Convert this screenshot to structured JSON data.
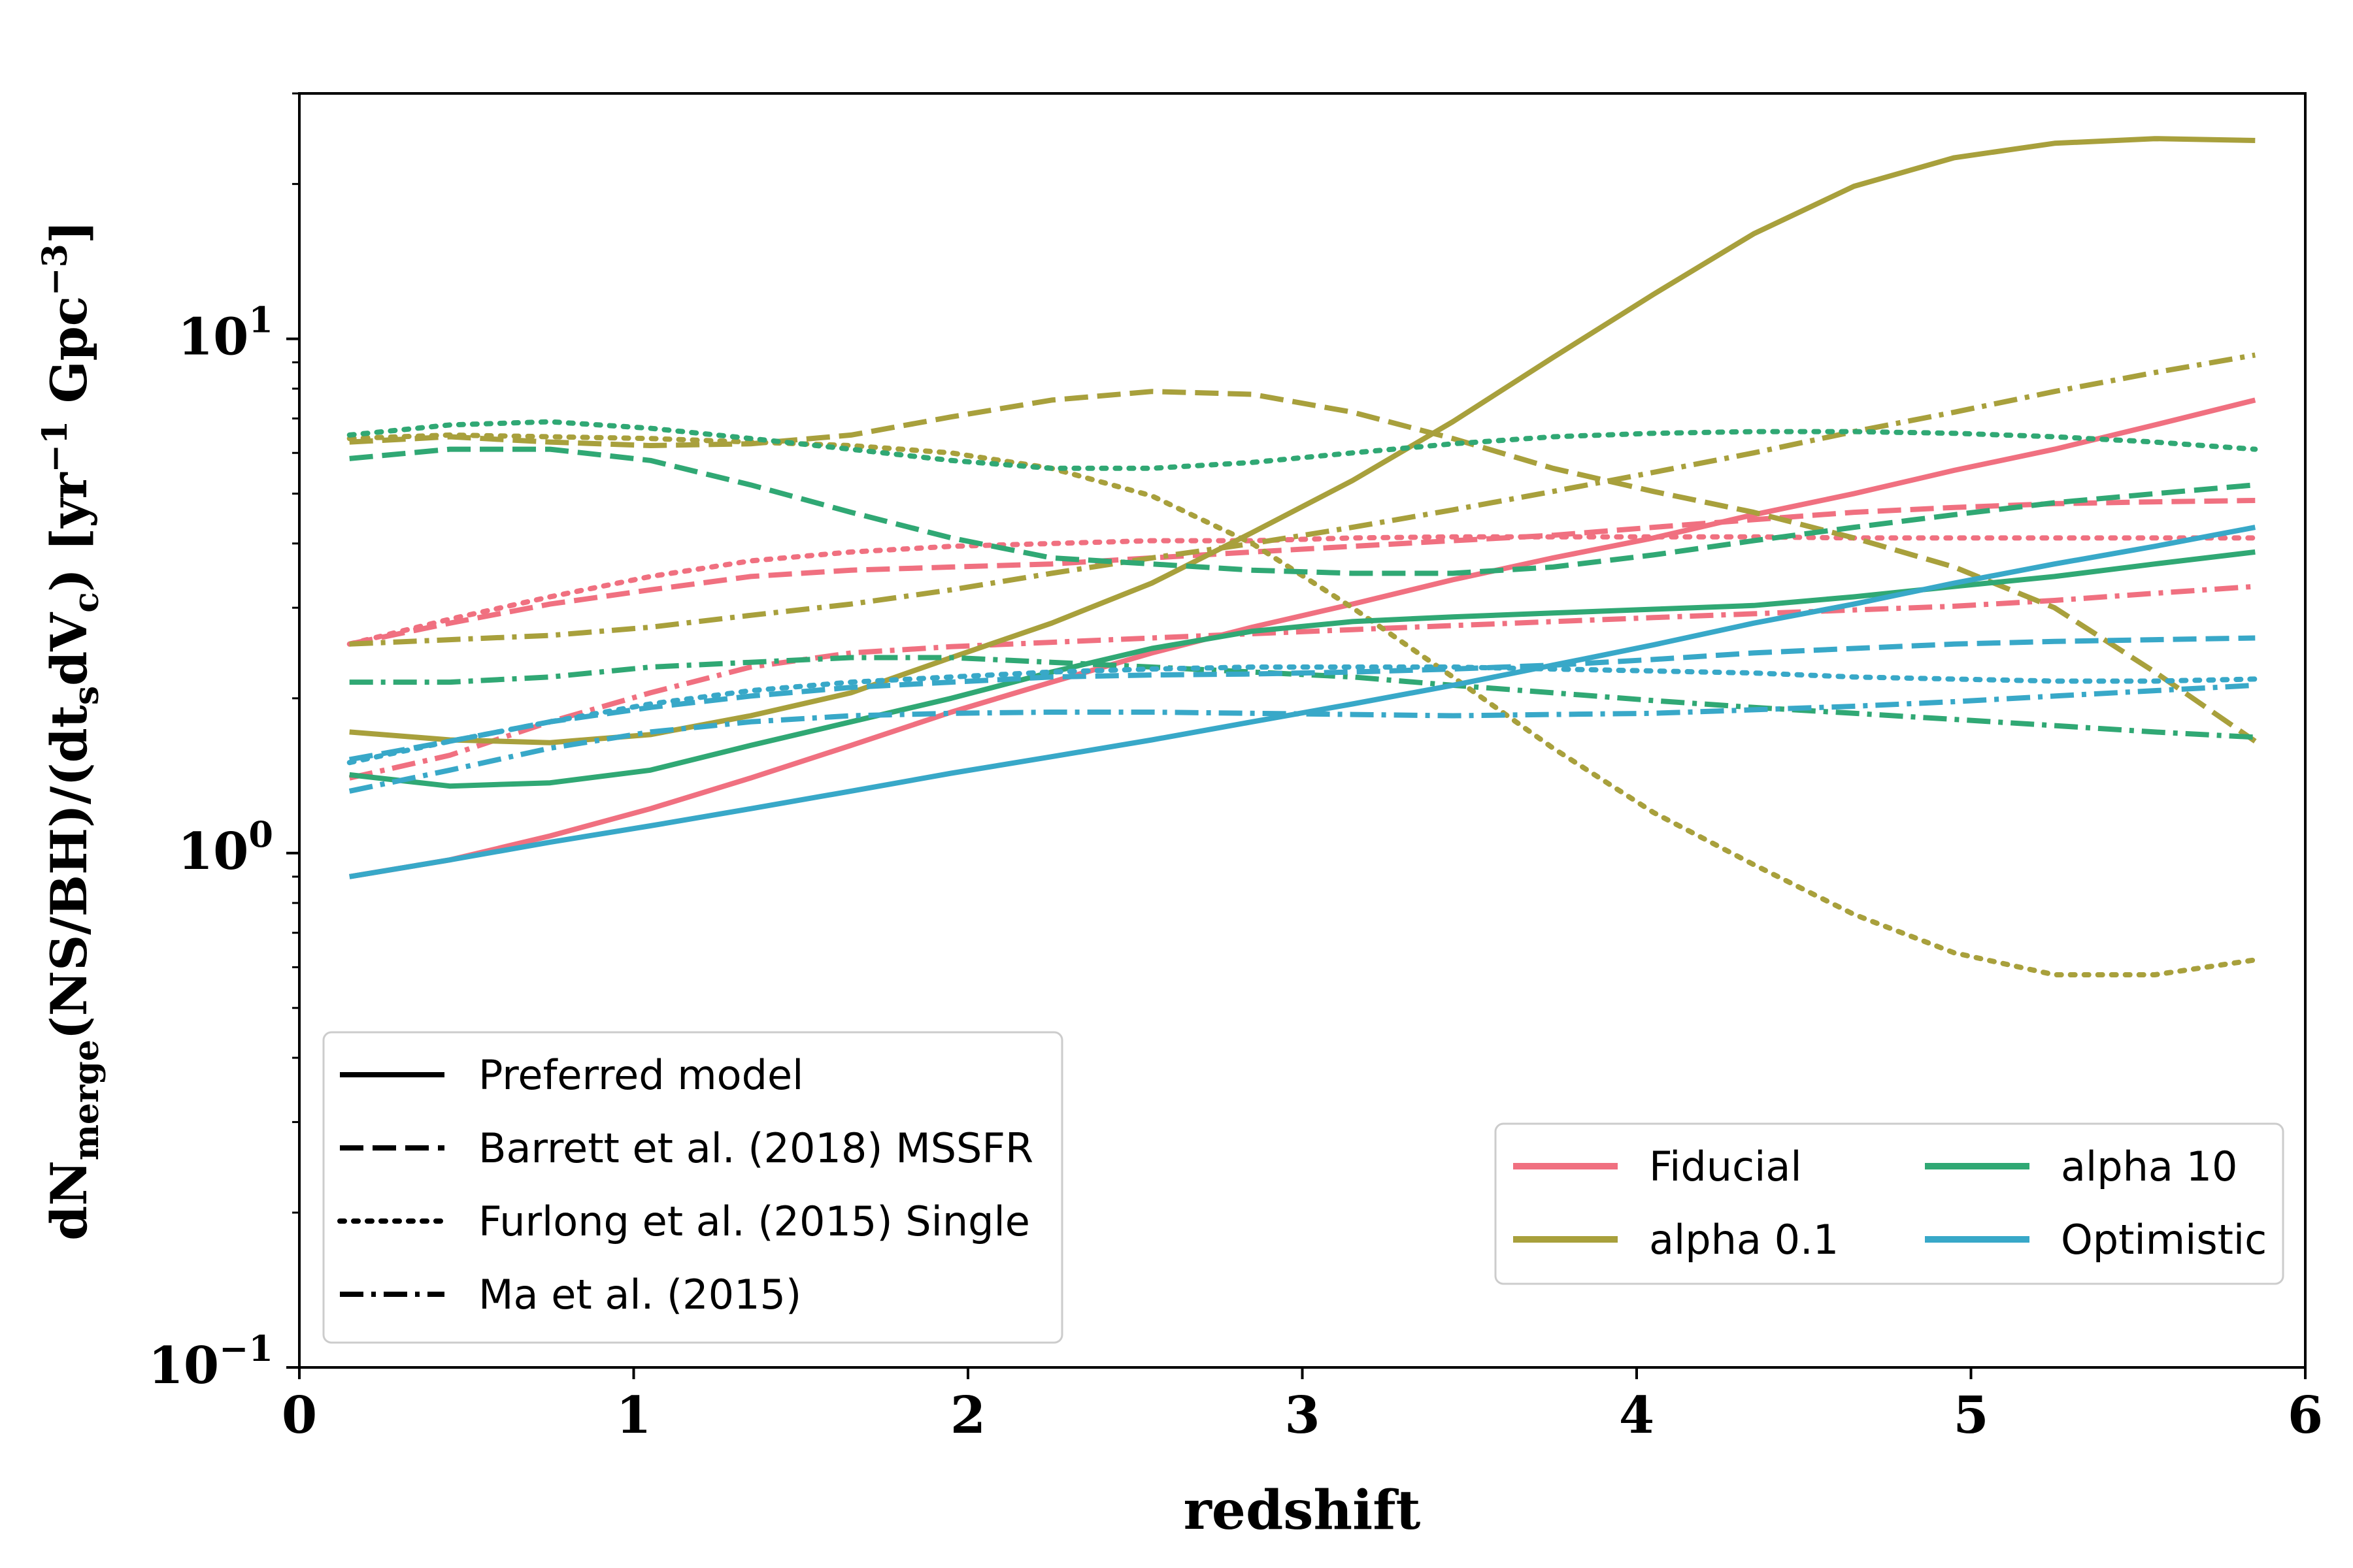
{
  "chart_data": {
    "type": "line",
    "xlabel": "redshift",
    "ylabel_parts": {
      "pre": "dN",
      "sub1": "merge",
      "mid": "(NS/BH)/(dt",
      "sub2": "s",
      "mid2": "dV",
      "sub3": "c",
      "post": ") [yr",
      "sup1": "−1",
      "post2": " Gpc",
      "sup2": "−3",
      "end": "]"
    },
    "xlim": [
      0,
      6
    ],
    "ylim": [
      0.1,
      30
    ],
    "yscale": "log",
    "xticks": [
      0,
      1,
      2,
      3,
      4,
      5,
      6
    ],
    "xtick_labels": [
      "0",
      "1",
      "2",
      "3",
      "4",
      "5",
      "6"
    ],
    "yticks": [
      {
        "value": 0.1,
        "base": "10",
        "exp": "−1"
      },
      {
        "value": 1,
        "base": "10",
        "exp": "0"
      },
      {
        "value": 10,
        "base": "10",
        "exp": "1"
      }
    ],
    "grid": false,
    "legend_styles": {
      "placement": "lower-left",
      "entries": [
        {
          "label": "Preferred model",
          "dash": "solid"
        },
        {
          "label": "Barrett et al. (2018) MSSFR",
          "dash": "dashed"
        },
        {
          "label": "Furlong et al. (2015) Single",
          "dash": "dotted"
        },
        {
          "label": "Ma et al. (2015)",
          "dash": "dashdot"
        }
      ]
    },
    "legend_models": {
      "placement": "lower-right",
      "entries": [
        {
          "label": "Fiducial",
          "color": "#f07080"
        },
        {
          "label": "alpha 10",
          "color": "#30a874"
        },
        {
          "label": "alpha 0.1",
          "color": "#a8a03c"
        },
        {
          "label": "Optimistic",
          "color": "#38a8c8"
        }
      ]
    },
    "series": [
      {
        "model": "Fiducial",
        "style": "solid",
        "color": "#f07080",
        "x": [
          0.15,
          0.45,
          0.75,
          1.05,
          1.35,
          1.65,
          1.95,
          2.25,
          2.55,
          2.85,
          3.15,
          3.45,
          3.75,
          4.05,
          4.35,
          4.65,
          4.95,
          5.25,
          5.55,
          5.85
        ],
        "y": [
          0.9,
          0.97,
          1.08,
          1.22,
          1.4,
          1.62,
          1.88,
          2.15,
          2.45,
          2.75,
          3.05,
          3.4,
          3.75,
          4.1,
          4.55,
          5.0,
          5.55,
          6.1,
          6.8,
          7.6
        ]
      },
      {
        "model": "Fiducial",
        "style": "dashed",
        "color": "#f07080",
        "x": [
          0.15,
          0.45,
          0.75,
          1.05,
          1.35,
          1.65,
          1.95,
          2.25,
          2.55,
          2.85,
          3.15,
          3.45,
          3.75,
          4.05,
          4.35,
          4.65,
          4.95,
          5.25,
          5.55,
          5.85
        ],
        "y": [
          2.55,
          2.8,
          3.05,
          3.25,
          3.45,
          3.55,
          3.6,
          3.65,
          3.75,
          3.85,
          3.95,
          4.05,
          4.15,
          4.3,
          4.45,
          4.6,
          4.7,
          4.78,
          4.82,
          4.85
        ]
      },
      {
        "model": "Fiducial",
        "style": "dotted",
        "color": "#f07080",
        "x": [
          0.15,
          0.45,
          0.75,
          1.05,
          1.35,
          1.65,
          1.95,
          2.25,
          2.55,
          2.85,
          3.15,
          3.45,
          3.75,
          4.05,
          4.35,
          4.65,
          4.95,
          5.25,
          5.55,
          5.85
        ],
        "y": [
          2.55,
          2.85,
          3.15,
          3.45,
          3.7,
          3.85,
          3.95,
          4.0,
          4.05,
          4.05,
          4.1,
          4.12,
          4.12,
          4.12,
          4.12,
          4.1,
          4.1,
          4.1,
          4.1,
          4.1
        ]
      },
      {
        "model": "Fiducial",
        "style": "dashdot",
        "color": "#f07080",
        "x": [
          0.15,
          0.45,
          0.75,
          1.05,
          1.35,
          1.65,
          1.95,
          2.25,
          2.55,
          2.85,
          3.15,
          3.45,
          3.75,
          4.05,
          4.35,
          4.65,
          4.95,
          5.25,
          5.55,
          5.85
        ],
        "y": [
          1.4,
          1.55,
          1.8,
          2.05,
          2.3,
          2.45,
          2.52,
          2.57,
          2.62,
          2.67,
          2.72,
          2.77,
          2.82,
          2.87,
          2.92,
          2.97,
          3.02,
          3.1,
          3.2,
          3.3
        ]
      },
      {
        "model": "alpha 0.1",
        "style": "solid",
        "color": "#a8a03c",
        "x": [
          0.15,
          0.45,
          0.75,
          1.05,
          1.35,
          1.65,
          1.95,
          2.25,
          2.55,
          2.85,
          3.15,
          3.45,
          3.75,
          4.05,
          4.35,
          4.65,
          4.95,
          5.25,
          5.55,
          5.85
        ],
        "y": [
          1.72,
          1.66,
          1.64,
          1.7,
          1.85,
          2.05,
          2.4,
          2.8,
          3.35,
          4.2,
          5.3,
          6.9,
          9.2,
          12.2,
          16.0,
          19.8,
          22.5,
          24.0,
          24.5,
          24.3
        ]
      },
      {
        "model": "alpha 0.1",
        "style": "dashed",
        "color": "#a8a03c",
        "x": [
          0.15,
          0.45,
          0.75,
          1.05,
          1.35,
          1.65,
          1.95,
          2.25,
          2.55,
          2.85,
          3.15,
          3.45,
          3.75,
          4.05,
          4.35,
          4.65,
          4.95,
          5.25,
          5.55,
          5.85
        ],
        "y": [
          6.3,
          6.45,
          6.3,
          6.2,
          6.25,
          6.5,
          7.05,
          7.6,
          7.9,
          7.8,
          7.2,
          6.4,
          5.6,
          5.05,
          4.6,
          4.1,
          3.6,
          3.0,
          2.25,
          1.65
        ]
      },
      {
        "model": "alpha 0.1",
        "style": "dotted",
        "color": "#a8a03c",
        "x": [
          0.15,
          0.45,
          0.75,
          1.05,
          1.35,
          1.65,
          1.95,
          2.25,
          2.55,
          2.85,
          3.15,
          3.45,
          3.75,
          4.05,
          4.35,
          4.65,
          4.95,
          5.25,
          5.55,
          5.85
        ],
        "y": [
          6.4,
          6.5,
          6.45,
          6.4,
          6.3,
          6.2,
          6.0,
          5.6,
          4.95,
          4.0,
          3.0,
          2.2,
          1.6,
          1.2,
          0.95,
          0.76,
          0.64,
          0.58,
          0.58,
          0.62
        ]
      },
      {
        "model": "alpha 0.1",
        "style": "dashdot",
        "color": "#a8a03c",
        "x": [
          0.15,
          0.45,
          0.75,
          1.05,
          1.35,
          1.65,
          1.95,
          2.25,
          2.55,
          2.85,
          3.15,
          3.45,
          3.75,
          4.05,
          4.35,
          4.65,
          4.95,
          5.25,
          5.55,
          5.85
        ],
        "y": [
          2.55,
          2.6,
          2.65,
          2.75,
          2.9,
          3.05,
          3.25,
          3.5,
          3.75,
          4.0,
          4.3,
          4.65,
          5.05,
          5.5,
          6.0,
          6.6,
          7.2,
          7.9,
          8.6,
          9.3
        ]
      },
      {
        "model": "alpha 10",
        "style": "solid",
        "color": "#30a874",
        "x": [
          0.15,
          0.45,
          0.75,
          1.05,
          1.35,
          1.65,
          1.95,
          2.25,
          2.55,
          2.85,
          3.15,
          3.45,
          3.75,
          4.05,
          4.35,
          4.65,
          4.95,
          5.25,
          5.55,
          5.85
        ],
        "y": [
          1.42,
          1.35,
          1.37,
          1.45,
          1.62,
          1.8,
          2.0,
          2.25,
          2.5,
          2.7,
          2.82,
          2.88,
          2.93,
          2.98,
          3.03,
          3.15,
          3.3,
          3.45,
          3.65,
          3.85
        ]
      },
      {
        "model": "alpha 10",
        "style": "dashed",
        "color": "#30a874",
        "x": [
          0.15,
          0.45,
          0.75,
          1.05,
          1.35,
          1.65,
          1.95,
          2.25,
          2.55,
          2.85,
          3.15,
          3.45,
          3.75,
          4.05,
          4.35,
          4.65,
          4.95,
          5.25,
          5.55,
          5.85
        ],
        "y": [
          5.85,
          6.1,
          6.1,
          5.8,
          5.2,
          4.6,
          4.1,
          3.75,
          3.65,
          3.55,
          3.5,
          3.5,
          3.6,
          3.8,
          4.05,
          4.3,
          4.55,
          4.8,
          5.0,
          5.2
        ]
      },
      {
        "model": "alpha 10",
        "style": "dotted",
        "color": "#30a874",
        "x": [
          0.15,
          0.45,
          0.75,
          1.05,
          1.35,
          1.65,
          1.95,
          2.25,
          2.55,
          2.85,
          3.15,
          3.45,
          3.75,
          4.05,
          4.35,
          4.65,
          4.95,
          5.25,
          5.55,
          5.85
        ],
        "y": [
          6.5,
          6.8,
          6.9,
          6.7,
          6.4,
          6.1,
          5.8,
          5.6,
          5.6,
          5.75,
          6.0,
          6.25,
          6.45,
          6.55,
          6.6,
          6.6,
          6.55,
          6.45,
          6.3,
          6.1
        ]
      },
      {
        "model": "alpha 10",
        "style": "dashdot",
        "color": "#30a874",
        "x": [
          0.15,
          0.45,
          0.75,
          1.05,
          1.35,
          1.65,
          1.95,
          2.25,
          2.55,
          2.85,
          3.15,
          3.45,
          3.75,
          4.05,
          4.35,
          4.65,
          4.95,
          5.25,
          5.55,
          5.85
        ],
        "y": [
          2.15,
          2.15,
          2.2,
          2.3,
          2.35,
          2.4,
          2.4,
          2.35,
          2.3,
          2.25,
          2.2,
          2.12,
          2.05,
          1.98,
          1.92,
          1.87,
          1.82,
          1.77,
          1.72,
          1.68
        ]
      },
      {
        "model": "Optimistic",
        "style": "solid",
        "color": "#38a8c8",
        "x": [
          0.15,
          0.45,
          0.75,
          1.05,
          1.35,
          1.65,
          1.95,
          2.25,
          2.55,
          2.85,
          3.15,
          3.45,
          3.75,
          4.05,
          4.35,
          4.65,
          4.95,
          5.25,
          5.55,
          5.85
        ],
        "y": [
          0.9,
          0.97,
          1.05,
          1.13,
          1.22,
          1.32,
          1.43,
          1.54,
          1.66,
          1.8,
          1.95,
          2.12,
          2.32,
          2.54,
          2.8,
          3.05,
          3.35,
          3.65,
          3.95,
          4.3
        ]
      },
      {
        "model": "Optimistic",
        "style": "dashed",
        "color": "#38a8c8",
        "x": [
          0.15,
          0.45,
          0.75,
          1.05,
          1.35,
          1.65,
          1.95,
          2.25,
          2.55,
          2.85,
          3.15,
          3.45,
          3.75,
          4.05,
          4.35,
          4.65,
          4.95,
          5.25,
          5.55,
          5.85
        ],
        "y": [
          1.52,
          1.65,
          1.8,
          1.92,
          2.02,
          2.1,
          2.15,
          2.2,
          2.22,
          2.23,
          2.25,
          2.28,
          2.32,
          2.38,
          2.45,
          2.5,
          2.55,
          2.58,
          2.6,
          2.62
        ]
      },
      {
        "model": "Optimistic",
        "style": "dotted",
        "color": "#38a8c8",
        "x": [
          0.15,
          0.45,
          0.75,
          1.05,
          1.35,
          1.65,
          1.95,
          2.25,
          2.55,
          2.85,
          3.15,
          3.45,
          3.75,
          4.05,
          4.35,
          4.65,
          4.95,
          5.25,
          5.55,
          5.85
        ],
        "y": [
          1.5,
          1.65,
          1.8,
          1.95,
          2.07,
          2.15,
          2.2,
          2.25,
          2.28,
          2.3,
          2.3,
          2.3,
          2.28,
          2.26,
          2.24,
          2.2,
          2.18,
          2.16,
          2.16,
          2.18
        ]
      },
      {
        "model": "Optimistic",
        "style": "dashdot",
        "color": "#38a8c8",
        "x": [
          0.15,
          0.45,
          0.75,
          1.05,
          1.35,
          1.65,
          1.95,
          2.25,
          2.55,
          2.85,
          3.15,
          3.45,
          3.75,
          4.05,
          4.35,
          4.65,
          4.95,
          5.25,
          5.55,
          5.85
        ],
        "y": [
          1.32,
          1.45,
          1.6,
          1.72,
          1.8,
          1.85,
          1.87,
          1.88,
          1.88,
          1.87,
          1.86,
          1.85,
          1.86,
          1.87,
          1.9,
          1.93,
          1.97,
          2.02,
          2.07,
          2.12
        ]
      }
    ]
  }
}
